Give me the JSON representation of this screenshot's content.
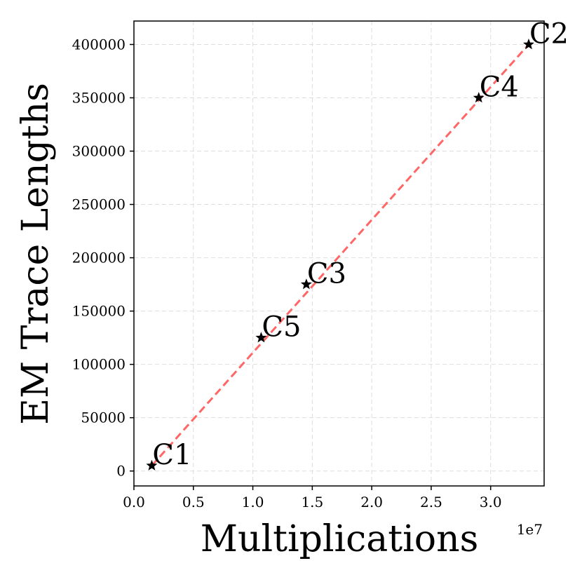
{
  "chart_data": {
    "type": "scatter",
    "title": "",
    "xlabel": "Multiplications",
    "ylabel": "EM Trace Lengths",
    "x_offset_label": "1e7",
    "x_scale": 10000000,
    "xlim": [
      0,
      3.45
    ],
    "ylim": [
      -14000,
      422000
    ],
    "x_ticks": [
      0.0,
      0.5,
      1.0,
      1.5,
      2.0,
      2.5,
      3.0
    ],
    "x_tick_labels": [
      "0.0",
      "0.5",
      "1.0",
      "1.5",
      "2.0",
      "2.5",
      "3.0"
    ],
    "y_ticks": [
      0,
      50000,
      100000,
      150000,
      200000,
      250000,
      300000,
      350000,
      400000
    ],
    "y_tick_labels": [
      "0",
      "50000",
      "100000",
      "150000",
      "200000",
      "250000",
      "300000",
      "350000",
      "400000"
    ],
    "grid": true,
    "points": [
      {
        "label": "C1",
        "x": 0.15,
        "y": 5000
      },
      {
        "label": "C5",
        "x": 1.07,
        "y": 125000
      },
      {
        "label": "C3",
        "x": 1.45,
        "y": 175000
      },
      {
        "label": "C4",
        "x": 2.9,
        "y": 350000
      },
      {
        "label": "C2",
        "x": 3.32,
        "y": 400000
      }
    ],
    "fit_line": {
      "x": [
        0.15,
        3.32
      ],
      "y": [
        5000,
        400000
      ],
      "style": "dashed"
    },
    "marker": "star",
    "colors": {
      "points": "#000000",
      "fit_line": "#ff6666",
      "grid": "#dddddd"
    }
  }
}
